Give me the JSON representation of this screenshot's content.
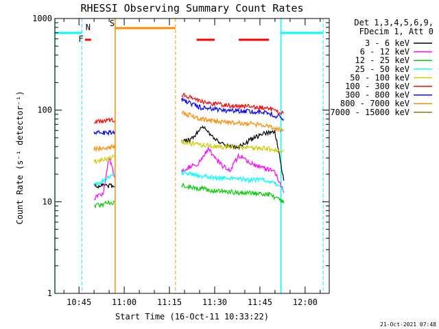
{
  "chart_data": {
    "type": "line",
    "title": "RHESSI Observing Summary Count Rates",
    "xlabel": "Start Time (16-Oct-11 10:33:22)",
    "ylabel": "Count Rate (s⁻¹ detector⁻¹)",
    "y_scale": "log",
    "ylim": [
      1,
      1000
    ],
    "xlim": [
      "10:37",
      "12:08"
    ],
    "x_ticks": [
      "10:45",
      "11:00",
      "11:15",
      "11:30",
      "11:45",
      "12:00"
    ],
    "y_ticks": [
      "1",
      "10",
      "100",
      "1000"
    ],
    "grid": false,
    "legend_placement": "right",
    "legend_header": [
      "Det 1,3,4,5,6,9,",
      "FDecim 1, Att 0"
    ],
    "footer_stamp": "21-Oct-2021 07:48",
    "flags": [
      {
        "label": "F",
        "color": "#ff0000"
      },
      {
        "label": "N",
        "color": "#00ffff"
      },
      {
        "label": "S",
        "color": "#ff8c00"
      }
    ],
    "intervals": [
      {
        "kind": "night",
        "color": "#00ffff",
        "start": "10:37",
        "end": "10:46"
      },
      {
        "kind": "night",
        "color": "#00ffff",
        "start": "11:52",
        "end": "12:06"
      },
      {
        "kind": "saa",
        "color": "#ff8c00",
        "start": "10:57",
        "end": "11:17"
      },
      {
        "kind": "flare",
        "color": "#ff0000",
        "start": "10:47",
        "end": "10:49"
      },
      {
        "kind": "flare",
        "color": "#ff0000",
        "start": "11:24",
        "end": "11:30"
      },
      {
        "kind": "flare",
        "color": "#ff0000",
        "start": "11:38",
        "end": "11:48"
      }
    ],
    "segments": [
      [
        "10:50",
        "10:57"
      ],
      [
        "11:19",
        "11:53"
      ]
    ],
    "series": [
      {
        "name": "3 - 6 keV",
        "color": "#000000",
        "x": [
          "10:50",
          "10:57",
          "11:19",
          "11:22",
          "11:26",
          "11:30",
          "11:34",
          "11:38",
          "11:42",
          "11:46",
          "11:50",
          "11:53"
        ],
        "values": [
          15,
          15,
          45,
          48,
          65,
          50,
          40,
          40,
          48,
          55,
          58,
          17
        ]
      },
      {
        "name": "6 - 12 keV",
        "color": "#ff00ff",
        "x": [
          "10:50",
          "10:53",
          "10:55",
          "10:57",
          "11:19",
          "11:22",
          "11:25",
          "11:28",
          "11:30",
          "11:33",
          "11:35",
          "11:38",
          "11:41",
          "11:44",
          "11:47",
          "11:50",
          "11:53"
        ],
        "values": [
          11,
          12,
          30,
          18,
          22,
          24,
          27,
          38,
          30,
          24,
          22,
          32,
          28,
          24,
          23,
          21,
          13
        ]
      },
      {
        "name": "12 - 25 keV",
        "color": "#00cc00",
        "x": [
          "10:50",
          "10:57",
          "11:19",
          "11:25",
          "11:32",
          "11:40",
          "11:48",
          "11:53"
        ],
        "values": [
          9,
          10,
          15,
          14,
          13,
          12.5,
          12,
          10
        ]
      },
      {
        "name": "25 - 50 keV",
        "color": "#00ffff",
        "x": [
          "10:50",
          "10:57",
          "11:19",
          "11:25",
          "11:32",
          "11:40",
          "11:48",
          "11:53"
        ],
        "values": [
          15,
          20,
          21,
          19,
          18,
          17.5,
          17,
          14
        ]
      },
      {
        "name": "50 - 100 keV",
        "color": "#cccc00",
        "x": [
          "10:50",
          "10:57",
          "11:19",
          "11:25",
          "11:32",
          "11:40",
          "11:48",
          "11:53"
        ],
        "values": [
          27,
          31,
          45,
          42,
          40,
          39,
          38,
          35
        ]
      },
      {
        "name": "100 - 300 keV",
        "color": "#ff0000",
        "x": [
          "10:50",
          "10:57",
          "11:19",
          "11:25",
          "11:32",
          "11:40",
          "11:48",
          "11:53"
        ],
        "values": [
          75,
          78,
          150,
          125,
          115,
          110,
          105,
          90
        ]
      },
      {
        "name": "300 - 800 keV",
        "color": "#0000ff",
        "x": [
          "10:50",
          "10:57",
          "11:19",
          "11:25",
          "11:32",
          "11:40",
          "11:48",
          "11:53"
        ],
        "values": [
          56,
          58,
          130,
          108,
          100,
          97,
          93,
          80
        ]
      },
      {
        "name": "800 - 7000 keV",
        "color": "#ff8c00",
        "x": [
          "10:50",
          "10:57",
          "11:19",
          "11:25",
          "11:32",
          "11:40",
          "11:48",
          "11:53"
        ],
        "values": [
          38,
          40,
          95,
          80,
          74,
          72,
          68,
          58
        ]
      },
      {
        "name": "7000 - 15000 keV",
        "color": "#808000",
        "x": [],
        "values": []
      }
    ]
  }
}
